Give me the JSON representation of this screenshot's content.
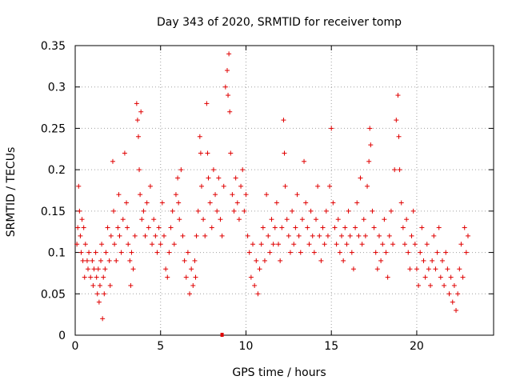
{
  "chart_data": {
    "type": "scatter",
    "title": "Day 343 of 2020, SRMTID for receiver tomp",
    "xlabel": "GPS time / hours",
    "ylabel": "SRMTID / TECUs",
    "xlim": [
      0,
      24.5
    ],
    "ylim": [
      0,
      0.35
    ],
    "x_ticks": [
      0,
      5,
      10,
      15,
      20
    ],
    "x_tick_labels": [
      "0",
      "5",
      "10",
      "15",
      "20"
    ],
    "y_ticks": [
      0,
      0.05,
      0.1,
      0.15,
      0.2,
      0.25,
      0.3,
      0.35
    ],
    "y_tick_labels": [
      "0",
      "0.05",
      "0.1",
      "0.15",
      "0.2",
      "0.25",
      "0.3",
      "0.35"
    ],
    "grid": true,
    "marker": "+",
    "color": "#e00000",
    "series": [
      {
        "name": "SRMTID",
        "points": [
          [
            0.1,
            0.11
          ],
          [
            0.15,
            0.13
          ],
          [
            0.2,
            0.18
          ],
          [
            0.25,
            0.15
          ],
          [
            0.3,
            0.12
          ],
          [
            0.35,
            0.1
          ],
          [
            0.4,
            0.14
          ],
          [
            0.45,
            0.09
          ],
          [
            0.5,
            0.13
          ],
          [
            0.55,
            0.07
          ],
          [
            0.6,
            0.11
          ],
          [
            0.7,
            0.09
          ],
          [
            0.75,
            0.08
          ],
          [
            0.8,
            0.1
          ],
          [
            0.9,
            0.07
          ],
          [
            1.0,
            0.09
          ],
          [
            1.05,
            0.06
          ],
          [
            1.1,
            0.08
          ],
          [
            1.2,
            0.1
          ],
          [
            1.25,
            0.07
          ],
          [
            1.3,
            0.05
          ],
          [
            1.35,
            0.08
          ],
          [
            1.4,
            0.04
          ],
          [
            1.45,
            0.06
          ],
          [
            1.5,
            0.09
          ],
          [
            1.55,
            0.11
          ],
          [
            1.6,
            0.02
          ],
          [
            1.65,
            0.07
          ],
          [
            1.7,
            0.05
          ],
          [
            1.75,
            0.08
          ],
          [
            1.8,
            0.1
          ],
          [
            1.9,
            0.13
          ],
          [
            2.0,
            0.09
          ],
          [
            2.05,
            0.06
          ],
          [
            2.1,
            0.12
          ],
          [
            2.2,
            0.21
          ],
          [
            2.25,
            0.15
          ],
          [
            2.3,
            0.11
          ],
          [
            2.4,
            0.09
          ],
          [
            2.5,
            0.13
          ],
          [
            2.55,
            0.17
          ],
          [
            2.6,
            0.12
          ],
          [
            2.7,
            0.1
          ],
          [
            2.8,
            0.14
          ],
          [
            2.9,
            0.22
          ],
          [
            3.0,
            0.16
          ],
          [
            3.05,
            0.13
          ],
          [
            3.1,
            0.11
          ],
          [
            3.2,
            0.09
          ],
          [
            3.25,
            0.06
          ],
          [
            3.3,
            0.1
          ],
          [
            3.4,
            0.08
          ],
          [
            3.5,
            0.12
          ],
          [
            3.6,
            0.28
          ],
          [
            3.65,
            0.26
          ],
          [
            3.7,
            0.24
          ],
          [
            3.75,
            0.2
          ],
          [
            3.8,
            0.17
          ],
          [
            3.85,
            0.27
          ],
          [
            3.9,
            0.14
          ],
          [
            4.0,
            0.15
          ],
          [
            4.1,
            0.12
          ],
          [
            4.2,
            0.16
          ],
          [
            4.3,
            0.13
          ],
          [
            4.4,
            0.18
          ],
          [
            4.5,
            0.11
          ],
          [
            4.6,
            0.14
          ],
          [
            4.7,
            0.12
          ],
          [
            4.8,
            0.1
          ],
          [
            4.9,
            0.13
          ],
          [
            5.0,
            0.11
          ],
          [
            5.1,
            0.16
          ],
          [
            5.2,
            0.12
          ],
          [
            5.3,
            0.08
          ],
          [
            5.4,
            0.07
          ],
          [
            5.5,
            0.1
          ],
          [
            5.6,
            0.13
          ],
          [
            5.7,
            0.15
          ],
          [
            5.8,
            0.11
          ],
          [
            5.9,
            0.17
          ],
          [
            6.0,
            0.19
          ],
          [
            6.05,
            0.16
          ],
          [
            6.1,
            0.14
          ],
          [
            6.2,
            0.2
          ],
          [
            6.3,
            0.12
          ],
          [
            6.4,
            0.09
          ],
          [
            6.5,
            0.07
          ],
          [
            6.6,
            0.1
          ],
          [
            6.7,
            0.05
          ],
          [
            6.8,
            0.08
          ],
          [
            6.9,
            0.06
          ],
          [
            7.0,
            0.09
          ],
          [
            7.05,
            0.07
          ],
          [
            7.1,
            0.12
          ],
          [
            7.2,
            0.15
          ],
          [
            7.3,
            0.24
          ],
          [
            7.35,
            0.22
          ],
          [
            7.4,
            0.18
          ],
          [
            7.5,
            0.14
          ],
          [
            7.6,
            0.12
          ],
          [
            7.7,
            0.28
          ],
          [
            7.75,
            0.22
          ],
          [
            7.8,
            0.19
          ],
          [
            7.9,
            0.16
          ],
          [
            8.0,
            0.13
          ],
          [
            8.1,
            0.2
          ],
          [
            8.2,
            0.17
          ],
          [
            8.3,
            0.15
          ],
          [
            8.4,
            0.19
          ],
          [
            8.5,
            0.14
          ],
          [
            8.6,
            0.12
          ],
          [
            8.7,
            0.18
          ],
          [
            8.8,
            0.3
          ],
          [
            8.9,
            0.32
          ],
          [
            8.95,
            0.29
          ],
          [
            9.0,
            0.34
          ],
          [
            9.05,
            0.27
          ],
          [
            9.1,
            0.22
          ],
          [
            9.2,
            0.17
          ],
          [
            9.3,
            0.15
          ],
          [
            9.4,
            0.19
          ],
          [
            9.5,
            0.16
          ],
          [
            9.6,
            0.14
          ],
          [
            9.7,
            0.18
          ],
          [
            9.8,
            0.2
          ],
          [
            9.9,
            0.15
          ],
          [
            10.0,
            0.17
          ],
          [
            10.1,
            0.12
          ],
          [
            10.2,
            0.1
          ],
          [
            10.3,
            0.07
          ],
          [
            10.4,
            0.11
          ],
          [
            10.5,
            0.06
          ],
          [
            10.6,
            0.09
          ],
          [
            10.7,
            0.05
          ],
          [
            10.8,
            0.08
          ],
          [
            10.9,
            0.11
          ],
          [
            11.0,
            0.13
          ],
          [
            11.1,
            0.09
          ],
          [
            11.2,
            0.17
          ],
          [
            11.3,
            0.12
          ],
          [
            11.4,
            0.1
          ],
          [
            11.5,
            0.14
          ],
          [
            11.6,
            0.11
          ],
          [
            11.7,
            0.13
          ],
          [
            11.8,
            0.16
          ],
          [
            11.9,
            0.11
          ],
          [
            12.0,
            0.09
          ],
          [
            12.1,
            0.13
          ],
          [
            12.2,
            0.26
          ],
          [
            12.25,
            0.22
          ],
          [
            12.3,
            0.18
          ],
          [
            12.4,
            0.14
          ],
          [
            12.5,
            0.12
          ],
          [
            12.6,
            0.1
          ],
          [
            12.7,
            0.15
          ],
          [
            12.8,
            0.11
          ],
          [
            12.9,
            0.13
          ],
          [
            13.0,
            0.17
          ],
          [
            13.1,
            0.12
          ],
          [
            13.2,
            0.1
          ],
          [
            13.3,
            0.14
          ],
          [
            13.4,
            0.21
          ],
          [
            13.5,
            0.16
          ],
          [
            13.6,
            0.13
          ],
          [
            13.7,
            0.11
          ],
          [
            13.8,
            0.15
          ],
          [
            13.9,
            0.12
          ],
          [
            14.0,
            0.1
          ],
          [
            14.1,
            0.14
          ],
          [
            14.2,
            0.18
          ],
          [
            14.3,
            0.12
          ],
          [
            14.4,
            0.09
          ],
          [
            14.5,
            0.13
          ],
          [
            14.6,
            0.11
          ],
          [
            14.7,
            0.15
          ],
          [
            14.8,
            0.12
          ],
          [
            14.9,
            0.18
          ],
          [
            15.0,
            0.25
          ],
          [
            15.1,
            0.16
          ],
          [
            15.2,
            0.13
          ],
          [
            15.3,
            0.11
          ],
          [
            15.4,
            0.14
          ],
          [
            15.5,
            0.1
          ],
          [
            15.6,
            0.12
          ],
          [
            15.7,
            0.09
          ],
          [
            15.8,
            0.13
          ],
          [
            15.9,
            0.11
          ],
          [
            16.0,
            0.15
          ],
          [
            16.1,
            0.12
          ],
          [
            16.2,
            0.1
          ],
          [
            16.3,
            0.08
          ],
          [
            16.4,
            0.13
          ],
          [
            16.5,
            0.16
          ],
          [
            16.6,
            0.12
          ],
          [
            16.7,
            0.19
          ],
          [
            16.8,
            0.11
          ],
          [
            16.9,
            0.14
          ],
          [
            17.0,
            0.12
          ],
          [
            17.1,
            0.18
          ],
          [
            17.2,
            0.21
          ],
          [
            17.25,
            0.25
          ],
          [
            17.3,
            0.23
          ],
          [
            17.4,
            0.15
          ],
          [
            17.5,
            0.13
          ],
          [
            17.6,
            0.1
          ],
          [
            17.7,
            0.08
          ],
          [
            17.8,
            0.12
          ],
          [
            17.9,
            0.09
          ],
          [
            18.0,
            0.11
          ],
          [
            18.1,
            0.14
          ],
          [
            18.2,
            0.1
          ],
          [
            18.3,
            0.07
          ],
          [
            18.4,
            0.12
          ],
          [
            18.5,
            0.15
          ],
          [
            18.6,
            0.11
          ],
          [
            18.7,
            0.2
          ],
          [
            18.8,
            0.26
          ],
          [
            18.9,
            0.29
          ],
          [
            18.95,
            0.24
          ],
          [
            19.0,
            0.2
          ],
          [
            19.1,
            0.16
          ],
          [
            19.2,
            0.13
          ],
          [
            19.3,
            0.11
          ],
          [
            19.4,
            0.14
          ],
          [
            19.5,
            0.1
          ],
          [
            19.6,
            0.08
          ],
          [
            19.7,
            0.12
          ],
          [
            19.8,
            0.15
          ],
          [
            19.9,
            0.11
          ],
          [
            20.0,
            0.08
          ],
          [
            20.1,
            0.06
          ],
          [
            20.2,
            0.1
          ],
          [
            20.3,
            0.13
          ],
          [
            20.4,
            0.09
          ],
          [
            20.5,
            0.07
          ],
          [
            20.6,
            0.11
          ],
          [
            20.7,
            0.08
          ],
          [
            20.8,
            0.06
          ],
          [
            20.9,
            0.09
          ],
          [
            21.0,
            0.12
          ],
          [
            21.1,
            0.08
          ],
          [
            21.2,
            0.1
          ],
          [
            21.3,
            0.13
          ],
          [
            21.4,
            0.07
          ],
          [
            21.5,
            0.09
          ],
          [
            21.6,
            0.06
          ],
          [
            21.7,
            0.1
          ],
          [
            21.8,
            0.08
          ],
          [
            21.9,
            0.05
          ],
          [
            22.0,
            0.07
          ],
          [
            22.1,
            0.04
          ],
          [
            22.2,
            0.06
          ],
          [
            22.3,
            0.03
          ],
          [
            22.4,
            0.05
          ],
          [
            22.5,
            0.08
          ],
          [
            22.6,
            0.11
          ],
          [
            22.7,
            0.07
          ],
          [
            22.8,
            0.13
          ],
          [
            22.9,
            0.1
          ],
          [
            23.0,
            0.12
          ]
        ]
      }
    ],
    "outlier_points": [
      [
        8.6,
        0.0
      ]
    ]
  }
}
